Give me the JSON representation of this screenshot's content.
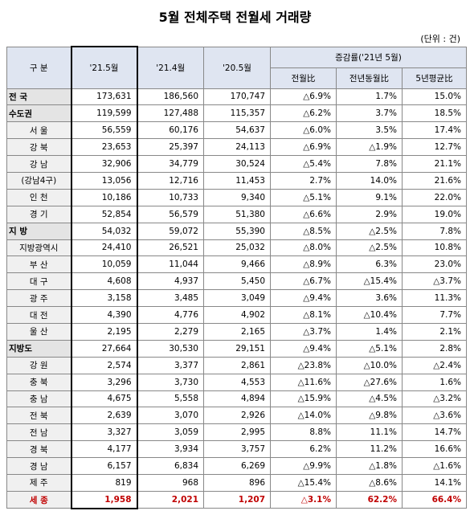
{
  "header": {
    "title": "5월 전체주택 전월세 거래량",
    "unit": "(단위 : 건)"
  },
  "table": {
    "columns": [
      "구 분",
      "'21.5월",
      "'21.4월",
      "'20.5월"
    ],
    "group": "증감률('21년 5월)",
    "subcolumns": [
      "전월比",
      "전년동월比",
      "5년평균比"
    ],
    "rows": [
      [
        "전 국",
        "173,631",
        "186,560",
        "170,747",
        "△6.9%",
        "1.7%",
        "15.0%"
      ],
      [
        "수도권",
        "119,599",
        "127,488",
        "115,357",
        "△6.2%",
        "3.7%",
        "18.5%"
      ],
      [
        "서 울",
        "56,559",
        "60,176",
        "54,637",
        "△6.0%",
        "3.5%",
        "17.4%"
      ],
      [
        "강 북",
        "23,653",
        "25,397",
        "24,113",
        "△6.9%",
        "△1.9%",
        "12.7%"
      ],
      [
        "강 남",
        "32,906",
        "34,779",
        "30,524",
        "△5.4%",
        "7.8%",
        "21.1%"
      ],
      [
        "(강남4구)",
        "13,056",
        "12,716",
        "11,453",
        "2.7%",
        "14.0%",
        "21.6%"
      ],
      [
        "인 천",
        "10,186",
        "10,733",
        "9,340",
        "△5.1%",
        "9.1%",
        "22.0%"
      ],
      [
        "경 기",
        "52,854",
        "56,579",
        "51,380",
        "△6.6%",
        "2.9%",
        "19.0%"
      ],
      [
        "지 방",
        "54,032",
        "59,072",
        "55,390",
        "△8.5%",
        "△2.5%",
        "7.8%"
      ],
      [
        "지방광역시",
        "24,410",
        "26,521",
        "25,032",
        "△8.0%",
        "△2.5%",
        "10.8%"
      ],
      [
        "부 산",
        "10,059",
        "11,044",
        "9,466",
        "△8.9%",
        "6.3%",
        "23.0%"
      ],
      [
        "대 구",
        "4,608",
        "4,937",
        "5,450",
        "△6.7%",
        "△15.4%",
        "△3.7%"
      ],
      [
        "광 주",
        "3,158",
        "3,485",
        "3,049",
        "△9.4%",
        "3.6%",
        "11.3%"
      ],
      [
        "대 전",
        "4,390",
        "4,776",
        "4,902",
        "△8.1%",
        "△10.4%",
        "7.7%"
      ],
      [
        "울 산",
        "2,195",
        "2,279",
        "2,165",
        "△3.7%",
        "1.4%",
        "2.1%"
      ],
      [
        "지방도",
        "27,664",
        "30,530",
        "29,151",
        "△9.4%",
        "△5.1%",
        "2.8%"
      ],
      [
        "강 원",
        "2,574",
        "3,377",
        "2,861",
        "△23.8%",
        "△10.0%",
        "△2.4%"
      ],
      [
        "충 북",
        "3,296",
        "3,730",
        "4,553",
        "△11.6%",
        "△27.6%",
        "1.6%"
      ],
      [
        "충 남",
        "4,675",
        "5,558",
        "4,894",
        "△15.9%",
        "△4.5%",
        "△3.2%"
      ],
      [
        "전 북",
        "2,639",
        "3,070",
        "2,926",
        "△14.0%",
        "△9.8%",
        "△3.6%"
      ],
      [
        "전 남",
        "3,327",
        "3,059",
        "2,995",
        "8.8%",
        "11.1%",
        "14.7%"
      ],
      [
        "경 북",
        "4,177",
        "3,934",
        "3,757",
        "6.2%",
        "11.2%",
        "16.6%"
      ],
      [
        "경 남",
        "6,157",
        "6,834",
        "6,269",
        "△9.9%",
        "△1.8%",
        "△1.6%"
      ],
      [
        "제 주",
        "819",
        "968",
        "896",
        "△15.4%",
        "△8.6%",
        "14.1%"
      ],
      [
        "세 종",
        "1,958",
        "2,021",
        "1,207",
        "△3.1%",
        "62.2%",
        "66.4%"
      ]
    ]
  }
}
